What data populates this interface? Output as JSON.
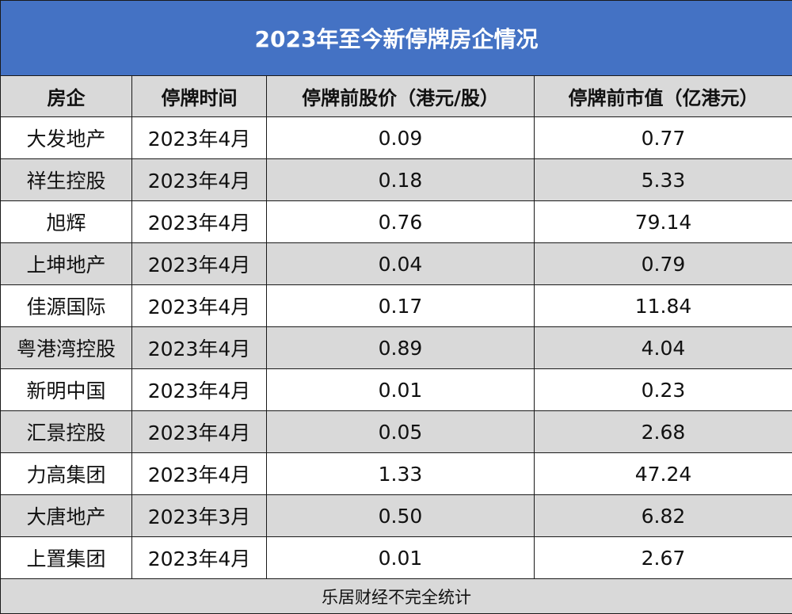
{
  "table": {
    "title": "2023年至今新停牌房企情况",
    "headers": [
      "房企",
      "停牌时间",
      "停牌前股价（港元/股）",
      "停牌前市值（亿港元）"
    ],
    "rows": [
      [
        "大发地产",
        "2023年4月",
        "0.09",
        "0.77"
      ],
      [
        "祥生控股",
        "2023年4月",
        "0.18",
        "5.33"
      ],
      [
        "旭辉",
        "2023年4月",
        "0.76",
        "79.14"
      ],
      [
        "上坤地产",
        "2023年4月",
        "0.04",
        "0.79"
      ],
      [
        "佳源国际",
        "2023年4月",
        "0.17",
        "11.84"
      ],
      [
        "粤港湾控股",
        "2023年4月",
        "0.89",
        "4.04"
      ],
      [
        "新明中国",
        "2023年4月",
        "0.01",
        "0.23"
      ],
      [
        "汇景控股",
        "2023年4月",
        "0.05",
        "2.68"
      ],
      [
        "力高集团",
        "2023年4月",
        "1.33",
        "47.24"
      ],
      [
        "大唐地产",
        "2023年3月",
        "0.50",
        "6.82"
      ],
      [
        "上置集团",
        "2023年4月",
        "0.01",
        "2.67"
      ]
    ],
    "footer": "乐居财经不完全统计"
  },
  "colors": {
    "title_bg": "#4472c4",
    "title_text": "#ffffff",
    "stripe_gray": "#d9d9d9",
    "border": "#1a1a1a"
  }
}
